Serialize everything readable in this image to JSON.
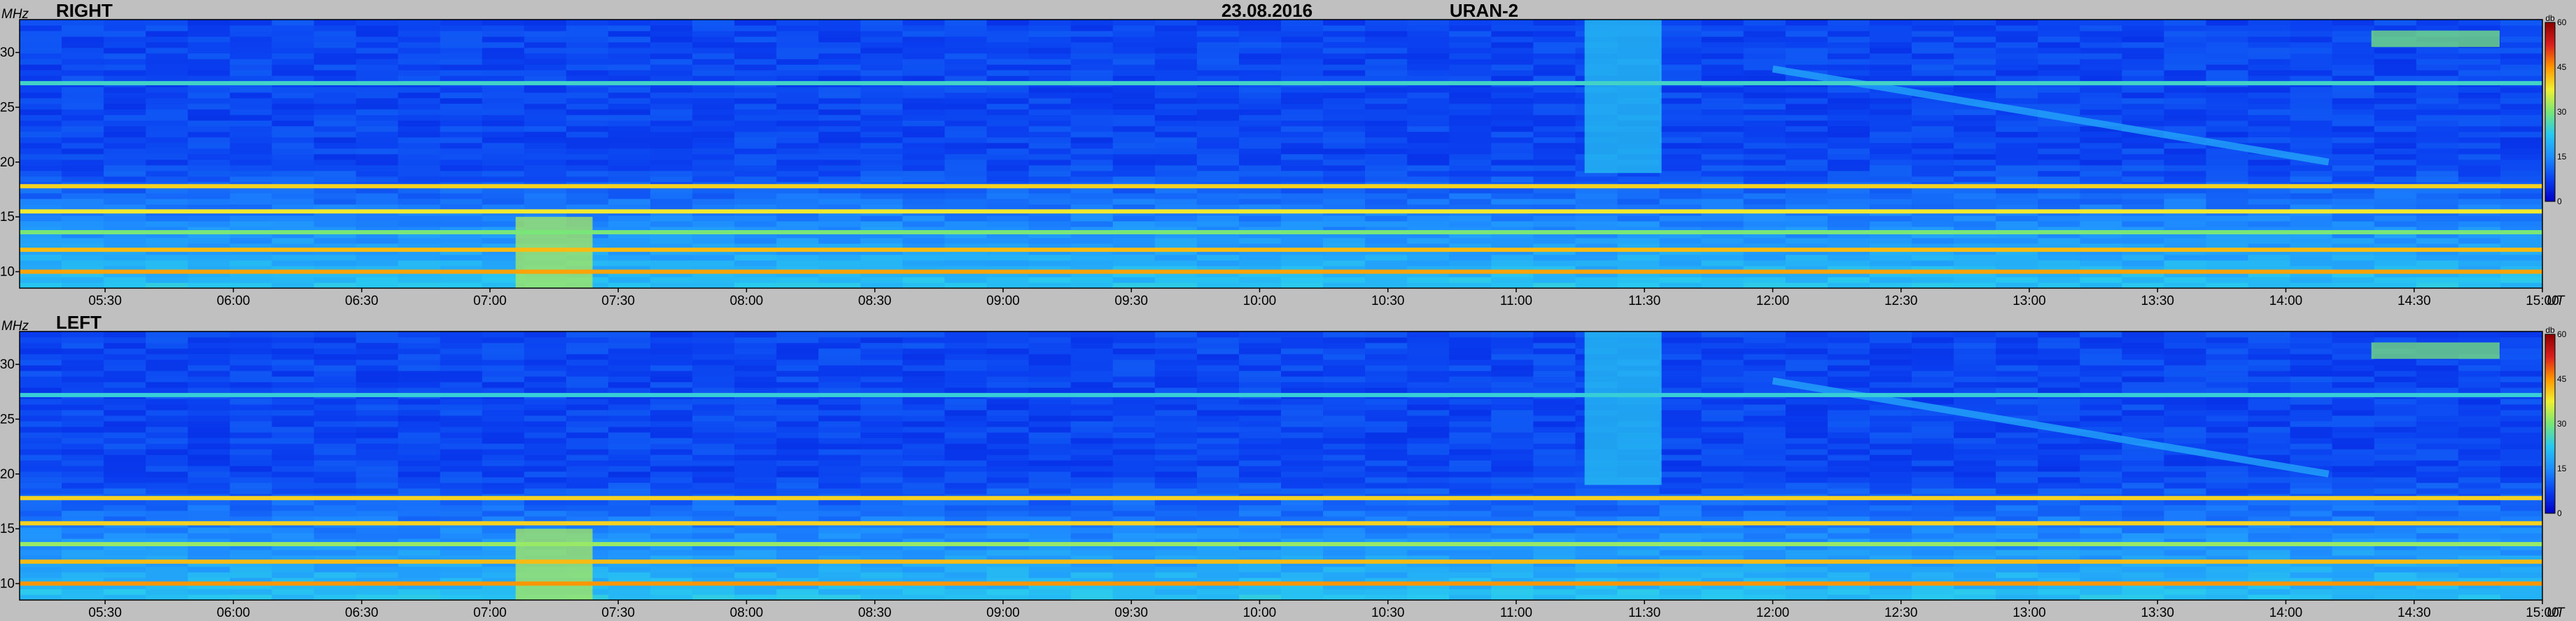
{
  "header": {
    "date": "23.08.2016",
    "instrument": "URAN-2"
  },
  "colors": {
    "background": "#c0c0c0",
    "colormap": [
      "#0000c8",
      "#0a40f0",
      "#1e8cff",
      "#28c8f0",
      "#78e678",
      "#f0f032",
      "#ff9600",
      "#dc1e1e",
      "#8c0000"
    ]
  },
  "chart_data": [
    {
      "type": "heatmap",
      "title": "RIGHT",
      "y_axis_label": "MHz",
      "x_unit": "UT",
      "x_range": [
        "05:10",
        "15:00"
      ],
      "x_ticks": [
        "05:30",
        "06:00",
        "06:30",
        "07:00",
        "07:30",
        "08:00",
        "08:30",
        "09:00",
        "09:30",
        "10:00",
        "10:30",
        "11:00",
        "11:30",
        "12:00",
        "12:30",
        "13:00",
        "13:30",
        "14:00",
        "14:30",
        "15:00"
      ],
      "y_range": [
        8.5,
        33
      ],
      "y_ticks": [
        10,
        15,
        20,
        25,
        30
      ],
      "colorbar": {
        "label": "db",
        "range": [
          0,
          60
        ],
        "ticks": [
          0,
          15,
          30,
          45,
          60
        ]
      },
      "bands_mhz": [
        {
          "freq": 17.8,
          "level": 40
        },
        {
          "freq": 15.5,
          "level": 38
        },
        {
          "freq": 13.6,
          "level": 30
        },
        {
          "freq": 12.0,
          "level": 42
        },
        {
          "freq": 10.0,
          "level": 44
        },
        {
          "freq": 27.2,
          "level": 25
        }
      ],
      "drift_feature": {
        "start_time": "12:00",
        "start_freq": 28.5,
        "end_time": "14:10",
        "end_freq": 20.0
      },
      "bursts": [
        {
          "time": "07:15",
          "freq_low": 8.5,
          "freq_high": 15,
          "level": 33
        },
        {
          "time": "11:25",
          "freq_low": 19,
          "freq_high": 33,
          "level": 22
        },
        {
          "time": "14:35",
          "freq_low": 30.5,
          "freq_high": 32,
          "level": 30
        }
      ]
    },
    {
      "type": "heatmap",
      "title": "LEFT",
      "y_axis_label": "MHz",
      "x_unit": "UT",
      "x_range": [
        "05:10",
        "15:00"
      ],
      "x_ticks": [
        "05:30",
        "06:00",
        "06:30",
        "07:00",
        "07:30",
        "08:00",
        "08:30",
        "09:00",
        "09:30",
        "10:00",
        "10:30",
        "11:00",
        "11:30",
        "12:00",
        "12:30",
        "13:00",
        "13:30",
        "14:00",
        "14:30",
        "15:00"
      ],
      "y_range": [
        8.5,
        33
      ],
      "y_ticks": [
        10,
        15,
        20,
        25,
        30
      ],
      "colorbar": {
        "label": "db",
        "range": [
          0,
          60
        ],
        "ticks": [
          0,
          15,
          30,
          45,
          60
        ]
      },
      "bands_mhz": [
        {
          "freq": 17.8,
          "level": 40
        },
        {
          "freq": 15.5,
          "level": 40
        },
        {
          "freq": 13.6,
          "level": 32
        },
        {
          "freq": 12.0,
          "level": 42
        },
        {
          "freq": 10.0,
          "level": 45
        },
        {
          "freq": 27.2,
          "level": 24
        }
      ],
      "drift_feature": {
        "start_time": "12:00",
        "start_freq": 28.5,
        "end_time": "14:10",
        "end_freq": 20.0
      },
      "bursts": [
        {
          "time": "07:15",
          "freq_low": 8.5,
          "freq_high": 15,
          "level": 33
        },
        {
          "time": "11:25",
          "freq_low": 19,
          "freq_high": 33,
          "level": 22
        },
        {
          "time": "14:35",
          "freq_low": 30.5,
          "freq_high": 32,
          "level": 30
        }
      ]
    }
  ]
}
